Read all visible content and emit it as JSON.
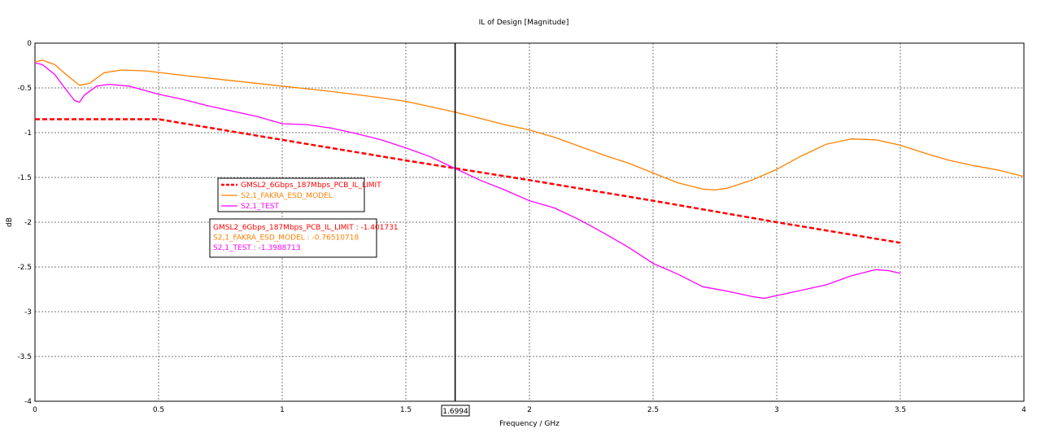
{
  "chart_data": {
    "type": "line",
    "title": "IL of Design [Magnitude]",
    "xlabel": "Frequency / GHz",
    "ylabel": "dB",
    "xlim": [
      0,
      4
    ],
    "ylim": [
      -4,
      0
    ],
    "x_ticks": [
      0,
      0.5,
      1,
      1.5,
      2,
      2.5,
      3,
      3.5,
      4
    ],
    "y_ticks": [
      0,
      -0.5,
      -1,
      -1.5,
      -2,
      -2.5,
      -3,
      -3.5,
      -4
    ],
    "x_tick_labels": [
      "0",
      "0.5",
      "1",
      "1.5",
      "2",
      "2.5",
      "3",
      "3.5",
      "4"
    ],
    "y_tick_labels": [
      "0",
      "-0.5",
      "-1",
      "-1.5",
      "-2",
      "-2.5",
      "-3",
      "-3.5",
      "-4"
    ],
    "grid": true,
    "marker": {
      "x": 1.6994,
      "label": "1.6994"
    },
    "series": [
      {
        "name": "GMSL2_6Gbps_187Mbps_PCB_IL_LIMIT",
        "color": "#ff0000",
        "style": "dashed",
        "points": [
          [
            0,
            -0.85
          ],
          [
            0.5,
            -0.85
          ],
          [
            1,
            -1.08
          ],
          [
            1.5,
            -1.31
          ],
          [
            2,
            -1.53
          ],
          [
            2.5,
            -1.76
          ],
          [
            3,
            -2.0
          ],
          [
            3.5,
            -2.23
          ]
        ]
      },
      {
        "name": "S2,1_FAKRA_ESD_MODEL",
        "color": "#ff8000",
        "style": "solid",
        "points": [
          [
            0,
            -0.21
          ],
          [
            0.03,
            -0.19
          ],
          [
            0.08,
            -0.24
          ],
          [
            0.13,
            -0.36
          ],
          [
            0.18,
            -0.47
          ],
          [
            0.22,
            -0.45
          ],
          [
            0.28,
            -0.33
          ],
          [
            0.35,
            -0.3
          ],
          [
            0.45,
            -0.31
          ],
          [
            0.6,
            -0.36
          ],
          [
            0.8,
            -0.42
          ],
          [
            1,
            -0.48
          ],
          [
            1.2,
            -0.54
          ],
          [
            1.4,
            -0.61
          ],
          [
            1.5,
            -0.65
          ],
          [
            1.6994,
            -0.77
          ],
          [
            1.8,
            -0.84
          ],
          [
            1.9,
            -0.91
          ],
          [
            2,
            -0.97
          ],
          [
            2.1,
            -1.05
          ],
          [
            2.2,
            -1.15
          ],
          [
            2.3,
            -1.25
          ],
          [
            2.4,
            -1.34
          ],
          [
            2.5,
            -1.45
          ],
          [
            2.6,
            -1.56
          ],
          [
            2.7,
            -1.63
          ],
          [
            2.75,
            -1.64
          ],
          [
            2.8,
            -1.62
          ],
          [
            2.9,
            -1.53
          ],
          [
            3.0,
            -1.41
          ],
          [
            3.1,
            -1.26
          ],
          [
            3.2,
            -1.13
          ],
          [
            3.3,
            -1.07
          ],
          [
            3.4,
            -1.08
          ],
          [
            3.5,
            -1.14
          ],
          [
            3.6,
            -1.23
          ],
          [
            3.7,
            -1.31
          ],
          [
            3.8,
            -1.37
          ],
          [
            3.9,
            -1.42
          ],
          [
            4.0,
            -1.49
          ]
        ]
      },
      {
        "name": "S2,1_TEST",
        "color": "#ff00ff",
        "style": "solid",
        "points": [
          [
            0,
            -0.22
          ],
          [
            0.03,
            -0.24
          ],
          [
            0.08,
            -0.35
          ],
          [
            0.12,
            -0.5
          ],
          [
            0.16,
            -0.64
          ],
          [
            0.18,
            -0.66
          ],
          [
            0.2,
            -0.58
          ],
          [
            0.25,
            -0.48
          ],
          [
            0.3,
            -0.46
          ],
          [
            0.38,
            -0.48
          ],
          [
            0.5,
            -0.57
          ],
          [
            0.6,
            -0.63
          ],
          [
            0.7,
            -0.7
          ],
          [
            0.8,
            -0.76
          ],
          [
            0.9,
            -0.82
          ],
          [
            1,
            -0.9
          ],
          [
            1.1,
            -0.91
          ],
          [
            1.2,
            -0.95
          ],
          [
            1.3,
            -1.01
          ],
          [
            1.4,
            -1.08
          ],
          [
            1.5,
            -1.17
          ],
          [
            1.6,
            -1.27
          ],
          [
            1.6994,
            -1.4
          ],
          [
            1.8,
            -1.53
          ],
          [
            1.9,
            -1.64
          ],
          [
            2.0,
            -1.76
          ],
          [
            2.1,
            -1.84
          ],
          [
            2.2,
            -1.97
          ],
          [
            2.3,
            -2.12
          ],
          [
            2.4,
            -2.28
          ],
          [
            2.5,
            -2.46
          ],
          [
            2.6,
            -2.58
          ],
          [
            2.7,
            -2.72
          ],
          [
            2.8,
            -2.77
          ],
          [
            2.9,
            -2.83
          ],
          [
            2.95,
            -2.85
          ],
          [
            3.0,
            -2.82
          ],
          [
            3.1,
            -2.76
          ],
          [
            3.2,
            -2.7
          ],
          [
            3.3,
            -2.6
          ],
          [
            3.4,
            -2.53
          ],
          [
            3.45,
            -2.54
          ],
          [
            3.5,
            -2.57
          ]
        ]
      }
    ],
    "marker_readouts": [
      {
        "text": "GMSL2_6Gbps_187Mbps_PCB_IL_LIMIT : -1.401731",
        "color": "#ff0000"
      },
      {
        "text": "S2,1_FAKRA_ESD_MODEL : -0.76510718",
        "color": "#ff8000"
      },
      {
        "text": "S2,1_TEST : -1.3988713",
        "color": "#ff00ff"
      }
    ]
  }
}
